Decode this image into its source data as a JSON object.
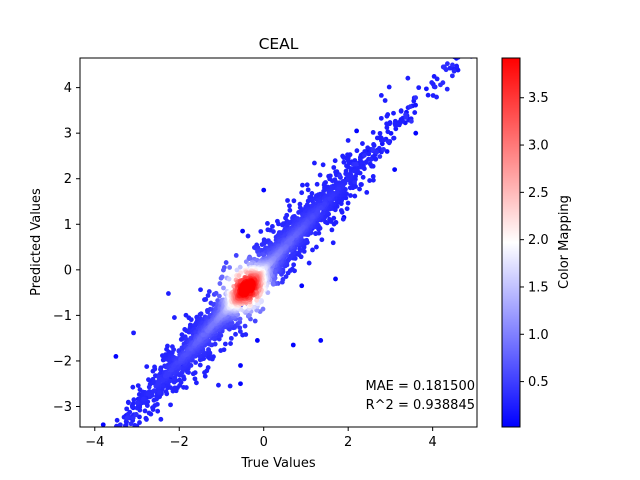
{
  "chart_data": {
    "type": "scatter",
    "title": "CEAL",
    "xlabel": "True Values",
    "ylabel": "Predicted Values",
    "xlim": [
      -4.35,
      5.05
    ],
    "ylim": [
      -3.45,
      4.65
    ],
    "xticks": [
      -4,
      -2,
      0,
      2,
      4
    ],
    "yticks": [
      -3,
      -2,
      -1,
      0,
      1,
      2,
      3,
      4
    ],
    "grid": false,
    "colorbar": {
      "label": "Color Mapping",
      "range": [
        0.02,
        3.92
      ],
      "ticks": [
        0.5,
        1.0,
        1.5,
        2.0,
        2.5,
        3.0,
        3.5
      ],
      "tick_labels": [
        "0.5",
        "1.0",
        "1.5",
        "2.0",
        "2.5",
        "3.0",
        "3.5"
      ],
      "colormap": [
        "#0000ff",
        "#ffffff",
        "#ff0000"
      ]
    },
    "annotations": [
      "MAE = 0.181500",
      "R^2 = 0.938845"
    ],
    "main_trend": {
      "x_range": [
        -4.3,
        5.0
      ],
      "slope": 1.0,
      "intercept": 0.0,
      "density_peak": [
        -0.4,
        -0.4
      ]
    },
    "outliers": [
      {
        "x": 3.6,
        "y": 3.0
      },
      {
        "x": 0.0,
        "y": 1.75
      },
      {
        "x": 0.7,
        "y": -1.65
      },
      {
        "x": 1.35,
        "y": -1.55
      },
      {
        "x": -0.15,
        "y": -1.55
      },
      {
        "x": -0.55,
        "y": -2.1
      },
      {
        "x": -0.55,
        "y": -2.5
      },
      {
        "x": 1.7,
        "y": -0.2
      },
      {
        "x": 1.9,
        "y": 1.15
      },
      {
        "x": -3.5,
        "y": -1.9
      },
      {
        "x": -3.8,
        "y": -3.4
      },
      {
        "x": 2.2,
        "y": 3.05
      },
      {
        "x": 3.1,
        "y": 2.2
      },
      {
        "x": 0.9,
        "y": -0.35
      },
      {
        "x": -0.5,
        "y": 0.85
      }
    ]
  }
}
